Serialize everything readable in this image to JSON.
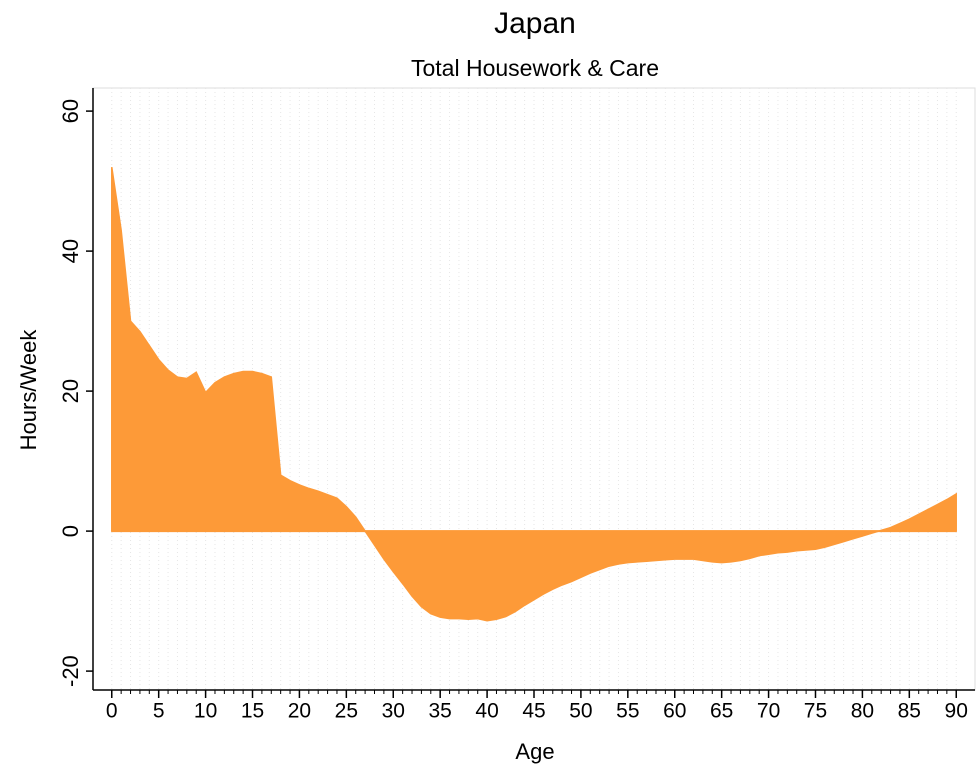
{
  "chart_data": {
    "type": "area",
    "title": "Japan",
    "subtitle": "Total Housework & Care",
    "xlabel": "Age",
    "ylabel": "Hours/Week",
    "color": "#fd9a38",
    "x": [
      0,
      1,
      2,
      3,
      4,
      5,
      6,
      7,
      8,
      9,
      10,
      11,
      12,
      13,
      14,
      15,
      16,
      17,
      18,
      19,
      20,
      21,
      22,
      23,
      24,
      25,
      26,
      27,
      28,
      29,
      30,
      31,
      32,
      33,
      34,
      35,
      36,
      37,
      38,
      39,
      40,
      41,
      42,
      43,
      44,
      45,
      46,
      47,
      48,
      49,
      50,
      51,
      52,
      53,
      54,
      55,
      56,
      57,
      58,
      59,
      60,
      61,
      62,
      63,
      64,
      65,
      66,
      67,
      68,
      69,
      70,
      71,
      72,
      73,
      74,
      75,
      76,
      77,
      78,
      79,
      80,
      81,
      82,
      83,
      84,
      85,
      86,
      87,
      88,
      89,
      90
    ],
    "values": [
      52,
      43,
      30,
      28.5,
      26.5,
      24.5,
      23,
      22,
      21.8,
      22.7,
      19.8,
      21.2,
      22,
      22.5,
      22.8,
      22.8,
      22.5,
      22,
      8,
      7.2,
      6.6,
      6.1,
      5.7,
      5.2,
      4.7,
      3.5,
      2,
      0,
      -2,
      -4,
      -5.8,
      -7.5,
      -9.3,
      -10.8,
      -11.8,
      -12.3,
      -12.5,
      -12.5,
      -12.6,
      -12.5,
      -12.8,
      -12.6,
      -12.2,
      -11.5,
      -10.6,
      -9.8,
      -9,
      -8.3,
      -7.7,
      -7.2,
      -6.6,
      -6,
      -5.5,
      -5,
      -4.7,
      -4.5,
      -4.4,
      -4.3,
      -4.2,
      -4.1,
      -4,
      -4,
      -4,
      -4.2,
      -4.4,
      -4.5,
      -4.4,
      -4.2,
      -3.9,
      -3.5,
      -3.3,
      -3.1,
      -3,
      -2.8,
      -2.7,
      -2.6,
      -2.3,
      -1.9,
      -1.5,
      -1.1,
      -0.7,
      -0.3,
      0.1,
      0.5,
      1.1,
      1.7,
      2.4,
      3.1,
      3.8,
      4.5,
      5.3
    ],
    "xlim": [
      -2,
      92
    ],
    "ylim": [
      -22.7,
      63.3
    ],
    "xticks": [
      0,
      5,
      10,
      15,
      20,
      25,
      30,
      35,
      40,
      45,
      50,
      55,
      60,
      65,
      70,
      75,
      80,
      85,
      90
    ],
    "yticks": [
      -20,
      0,
      20,
      40,
      60
    ],
    "grid": true
  }
}
